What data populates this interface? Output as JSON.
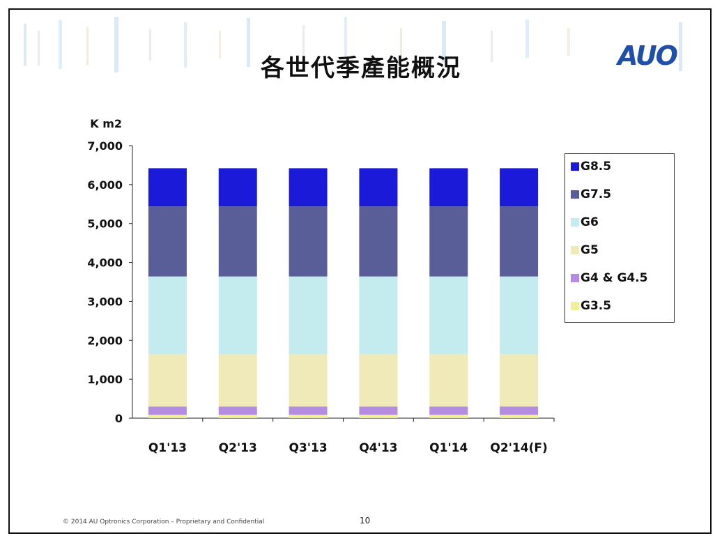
{
  "slide": {
    "title": "各世代季產能概況",
    "logo_text": "AUO",
    "footer": "© 2014 AU Optronics Corporation – Proprietary and Confidential",
    "page_number": "10"
  },
  "chart_data": {
    "type": "bar",
    "stacked": true,
    "title": "",
    "ylabel": "K m2",
    "xlabel": "",
    "ylim": [
      0,
      7000
    ],
    "yticks": [
      0,
      1000,
      2000,
      3000,
      4000,
      5000,
      6000,
      7000
    ],
    "ytick_labels": [
      "0",
      "1,000",
      "2,000",
      "3,000",
      "4,000",
      "5,000",
      "6,000",
      "7,000"
    ],
    "categories": [
      "Q1'13",
      "Q2'13",
      "Q3'13",
      "Q4'13",
      "Q1'14",
      "Q2'14(F)"
    ],
    "legend_position": "right",
    "series": [
      {
        "name": "G3.5",
        "color": "#f0ee9a",
        "values": [
          90,
          90,
          90,
          90,
          90,
          90
        ]
      },
      {
        "name": "G4 & G4.5",
        "color": "#b48ce0",
        "values": [
          210,
          210,
          210,
          210,
          210,
          210
        ]
      },
      {
        "name": "G5",
        "color": "#efeab8",
        "values": [
          1340,
          1340,
          1340,
          1340,
          1340,
          1340
        ]
      },
      {
        "name": "G6",
        "color": "#c4ecee",
        "values": [
          2000,
          2000,
          2000,
          2000,
          2000,
          2000
        ]
      },
      {
        "name": "G7.5",
        "color": "#5a5e98",
        "values": [
          1800,
          1800,
          1800,
          1800,
          1800,
          1800
        ]
      },
      {
        "name": "G8.5",
        "color": "#1a1ad8",
        "values": [
          980,
          980,
          980,
          980,
          980,
          980
        ]
      }
    ]
  }
}
